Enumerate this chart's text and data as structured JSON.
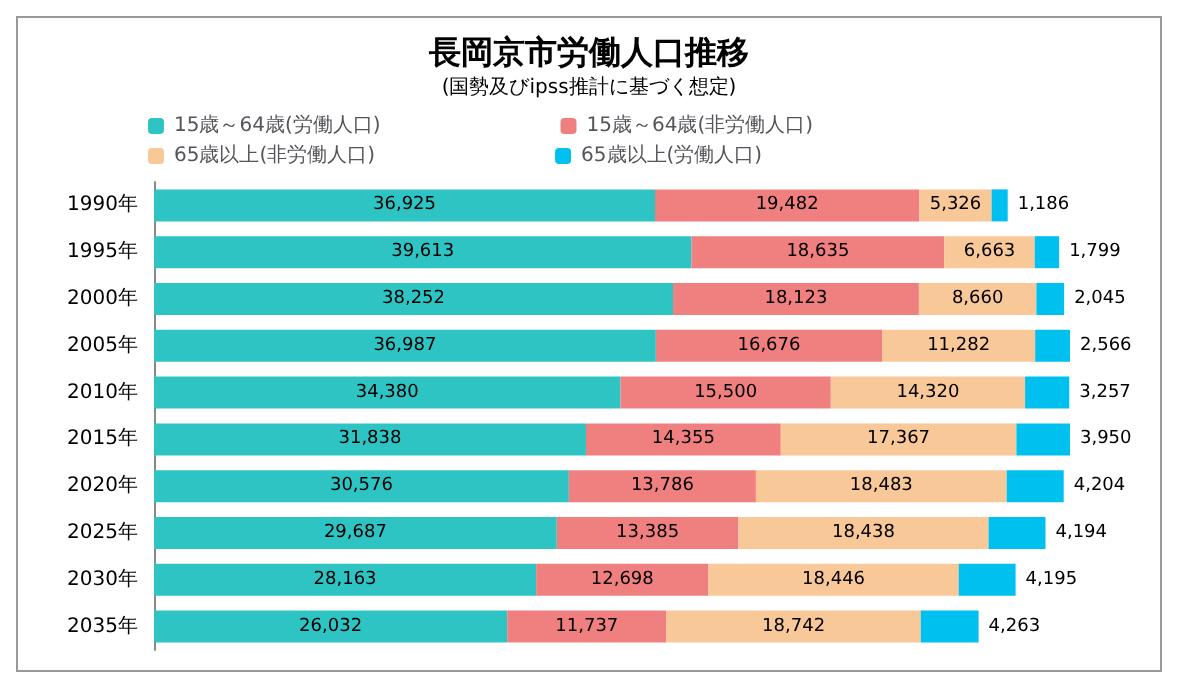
{
  "chart_data": {
    "type": "bar",
    "orientation": "horizontal",
    "stacked": true,
    "title": "長岡京市労働人口推移",
    "subtitle": "(国勢及びipss推計に基づく想定)",
    "categories": [
      "1990年",
      "1995年",
      "2000年",
      "2005年",
      "2010年",
      "2015年",
      "2020年",
      "2025年",
      "2030年",
      "2035年"
    ],
    "series": [
      {
        "name": "15歳～64歳(労働人口)",
        "color": "#2ec4c4",
        "values": [
          36925,
          39613,
          38252,
          36987,
          34380,
          31838,
          30576,
          29687,
          28163,
          26032
        ],
        "value_labels": [
          "36,925",
          "39,613",
          "38,252",
          "36,987",
          "34,380",
          "31,838",
          "30,576",
          "29,687",
          "28,163",
          "26,032"
        ]
      },
      {
        "name": "15歳～64歳(非労働人口)",
        "color": "#f08080",
        "values": [
          19482,
          18635,
          18123,
          16676,
          15500,
          14355,
          13786,
          13385,
          12698,
          11737
        ],
        "value_labels": [
          "19,482",
          "18,635",
          "18,123",
          "16,676",
          "15,500",
          "14,355",
          "13,786",
          "13,385",
          "12,698",
          "11,737"
        ]
      },
      {
        "name": "65歳以上(非労働人口)",
        "color": "#f8c898",
        "values": [
          5326,
          6663,
          8660,
          11282,
          14320,
          17367,
          18483,
          18438,
          18446,
          18742
        ],
        "value_labels": [
          "5,326",
          "6,663",
          "8,660",
          "11,282",
          "14,320",
          "17,367",
          "18,483",
          "18,438",
          "18,446",
          "18,742"
        ]
      },
      {
        "name": "65歳以上(労働人口)",
        "color": "#00c0f0",
        "values": [
          1186,
          1799,
          2045,
          2566,
          3257,
          3950,
          4204,
          4194,
          4195,
          4263
        ],
        "value_labels": [
          "1,186",
          "1,799",
          "2,045",
          "2,566",
          "3,257",
          "3,950",
          "4,204",
          "4,194",
          "4,195",
          "4,263"
        ]
      }
    ],
    "legend": "top",
    "grid": false
  }
}
